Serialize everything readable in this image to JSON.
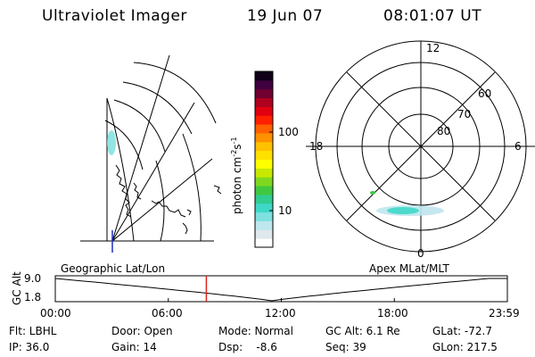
{
  "header": {
    "title": "Ultraviolet Imager",
    "date": "19 Jun 07",
    "time": "08:01:07 UT"
  },
  "colorbar": {
    "unit_main": "photon cm",
    "unit_exp1": "-2",
    "unit_s": "s",
    "unit_exp2": "-1",
    "ticks": [
      "100",
      "10"
    ],
    "tick_values": [
      100,
      10
    ],
    "colors": [
      "#ffffff",
      "#dfe8ec",
      "#bfe6ee",
      "#7fe0e0",
      "#3fd8c8",
      "#30cc90",
      "#40c840",
      "#7fd820",
      "#c8e800",
      "#ffff00",
      "#ffe000",
      "#ffc000",
      "#ff9000",
      "#ff6000",
      "#ff2000",
      "#e00010",
      "#b00020",
      "#700030",
      "#400040",
      "#100018"
    ]
  },
  "polar": {
    "mlt_labels": {
      "top": "12",
      "right": "6",
      "bottom": "0",
      "left": "18"
    },
    "lat_labels": [
      "80",
      "70",
      "60"
    ]
  },
  "timeline": {
    "ylabel": "GC Alt",
    "ytick_top": "9.0",
    "ytick_bottom": "1.8",
    "left_title": "Geographic Lat/Lon",
    "right_title": "Apex MLat/MLT",
    "xticks": [
      "00:00",
      "06:00",
      "12:00",
      "18:00",
      "23:59"
    ],
    "current_time_hours": 8.02
  },
  "status": {
    "flt": "Flt: LBHL",
    "ip": "IP: 36.0",
    "door": "Door: Open",
    "gain": "Gain: 14",
    "mode": "Mode: Normal",
    "dsp": "Dsp:    -8.6",
    "gcalt": "GC Alt: 6.1 Re",
    "seq": "Seq: 39",
    "glat": "GLat: -72.7",
    "glon": "GLon: 217.5"
  }
}
